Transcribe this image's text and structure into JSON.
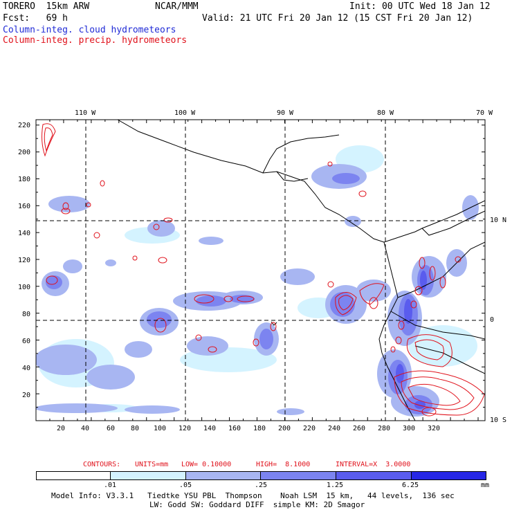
{
  "header": {
    "model": "TORERO  15km ARW",
    "org": "NCAR/MMM",
    "init": "Init: 00 UTC Wed 18 Jan 12",
    "fcst": "Fcst:   69 h",
    "valid": "Valid: 21 UTC Fri 20 Jan 12 (15 CST Fri 20 Jan 12)",
    "field_blue": "Column-integ. cloud hydrometeors",
    "field_red": "Column-integ. precip. hydrometeors"
  },
  "map": {
    "lon_labels": [
      "110 W",
      "100 W",
      "90 W",
      "80 W",
      "70 W"
    ],
    "lat_labels_right": [
      "10 N",
      "0",
      "10 S"
    ],
    "y_ticks": [
      "220",
      "200",
      "180",
      "160",
      "140",
      "120",
      "100",
      "80",
      "60",
      "40",
      "20"
    ],
    "x_ticks": [
      "20",
      "40",
      "60",
      "80",
      "100",
      "120",
      "140",
      "160",
      "180",
      "200",
      "220",
      "240",
      "260",
      "280",
      "300",
      "320"
    ]
  },
  "contours": {
    "label": "CONTOURS:",
    "units": "UNITS=mm",
    "low": "LOW= 0.10000",
    "high": "HIGH=  8.1000",
    "interval": "INTERVAL=X  3.0000"
  },
  "legend": {
    "values": [
      ".01",
      ".05",
      ".25",
      "1.25",
      "6.25"
    ],
    "unit": "mm",
    "colors": [
      "#ffffff",
      "#d4f3ff",
      "#a8b6f2",
      "#7c84f0",
      "#5a5cee",
      "#2727e6"
    ]
  },
  "footer": {
    "line1": "Model Info: V3.3.1   Tiedtke YSU PBL  Thompson    Noah LSM  15 km,   44 levels,  136 sec",
    "line2": "LW: Godd SW: Goddard DIFF  simple KM: 2D Smagor"
  }
}
